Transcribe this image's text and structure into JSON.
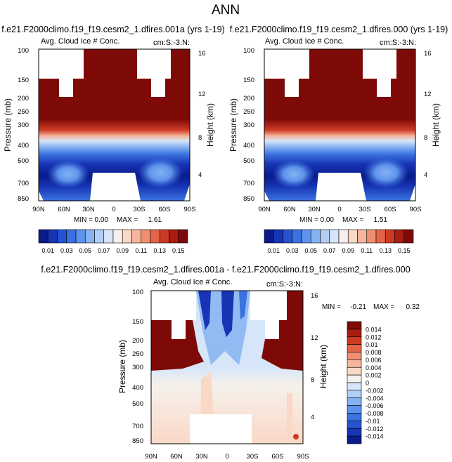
{
  "figure_title": "ANN",
  "chart_data": [
    {
      "type": "heatmap",
      "title": "f.e21.F2000climo.f19_f19.cesm2_1.dfires.001a (yrs 1-19)",
      "left_label": "Avg. Cloud Ice # Conc.",
      "right_label": "cm:S:-3:N:",
      "ylabel": "Pressure (mb)",
      "ylabel_right": "Height (km)",
      "yticks": [
        "100",
        "150",
        "200",
        "250",
        "300",
        "400",
        "500",
        "700",
        "850"
      ],
      "yticks_right": [
        "16",
        "12",
        "8",
        "4"
      ],
      "xticks": [
        "90N",
        "60N",
        "30N",
        "0",
        "30S",
        "60S",
        "90S"
      ],
      "min_label": "MIN =",
      "min_value": "0.00",
      "max_label": "MAX =",
      "max_value": "1.61"
    },
    {
      "type": "heatmap",
      "title": "f.e21.F2000climo.f19_f19.cesm2_1.dfires.000 (yrs 1-19)",
      "left_label": "Avg. Cloud Ice # Conc.",
      "right_label": "cm:S:-3:N:",
      "ylabel": "Pressure (mb)",
      "ylabel_right": "Height (km)",
      "yticks": [
        "100",
        "150",
        "200",
        "250",
        "300",
        "400",
        "500",
        "700",
        "850"
      ],
      "yticks_right": [
        "16",
        "12",
        "8",
        "4"
      ],
      "xticks": [
        "90N",
        "60N",
        "30N",
        "0",
        "30S",
        "60S",
        "90S"
      ],
      "min_label": "MIN =",
      "min_value": "0.00",
      "max_label": "MAX =",
      "max_value": "1.51"
    },
    {
      "type": "heatmap",
      "title": "f.e21.F2000climo.f19_f19.cesm2_1.dfires.001a - f.e21.F2000climo.f19_f19.cesm2_1.dfires.000",
      "left_label": "Avg. Cloud Ice # Conc.",
      "right_label": "cm:S:-3:N:",
      "ylabel": "Pressure (mb)",
      "ylabel_right": "Height (km)",
      "yticks": [
        "100",
        "150",
        "200",
        "250",
        "300",
        "400",
        "500",
        "700",
        "850"
      ],
      "yticks_right": [
        "16",
        "12",
        "8",
        "4"
      ],
      "xticks": [
        "90N",
        "60N",
        "30N",
        "0",
        "30S",
        "60S",
        "90S"
      ],
      "min_label": "MIN =",
      "min_value": "-0.21",
      "max_label": "MAX =",
      "max_value": "0.32"
    }
  ],
  "colorbar_main": {
    "colors": [
      "#0a1b8c",
      "#1634b4",
      "#2653d2",
      "#3b72e0",
      "#5e93ec",
      "#86b2f2",
      "#b0cef6",
      "#d6e6f8",
      "#f6f1ec",
      "#f9d8c6",
      "#f7b69c",
      "#f08f6f",
      "#e36548",
      "#cc3a24",
      "#a81c12",
      "#7d0a07"
    ],
    "labels": [
      "0.01",
      "0.03",
      "0.05",
      "0.07",
      "0.09",
      "0.11",
      "0.13",
      "0.15"
    ]
  },
  "colorbar_diff": {
    "colors": [
      "#0a1b8c",
      "#1634b4",
      "#2653d2",
      "#3b72e0",
      "#5e93ec",
      "#86b2f2",
      "#b0cef6",
      "#d6e6f8",
      "#f6f1ec",
      "#f9d8c6",
      "#f7b69c",
      "#f08f6f",
      "#e36548",
      "#cc3a24",
      "#a81c12",
      "#7d0a07"
    ],
    "labels": [
      "-0.014",
      "-0.012",
      "-0.01",
      "-0.008",
      "-0.006",
      "-0.004",
      "-0.002",
      "0",
      "0.002",
      "0.004",
      "0.006",
      "0.008",
      "0.01",
      "0.012",
      "0.014"
    ]
  }
}
